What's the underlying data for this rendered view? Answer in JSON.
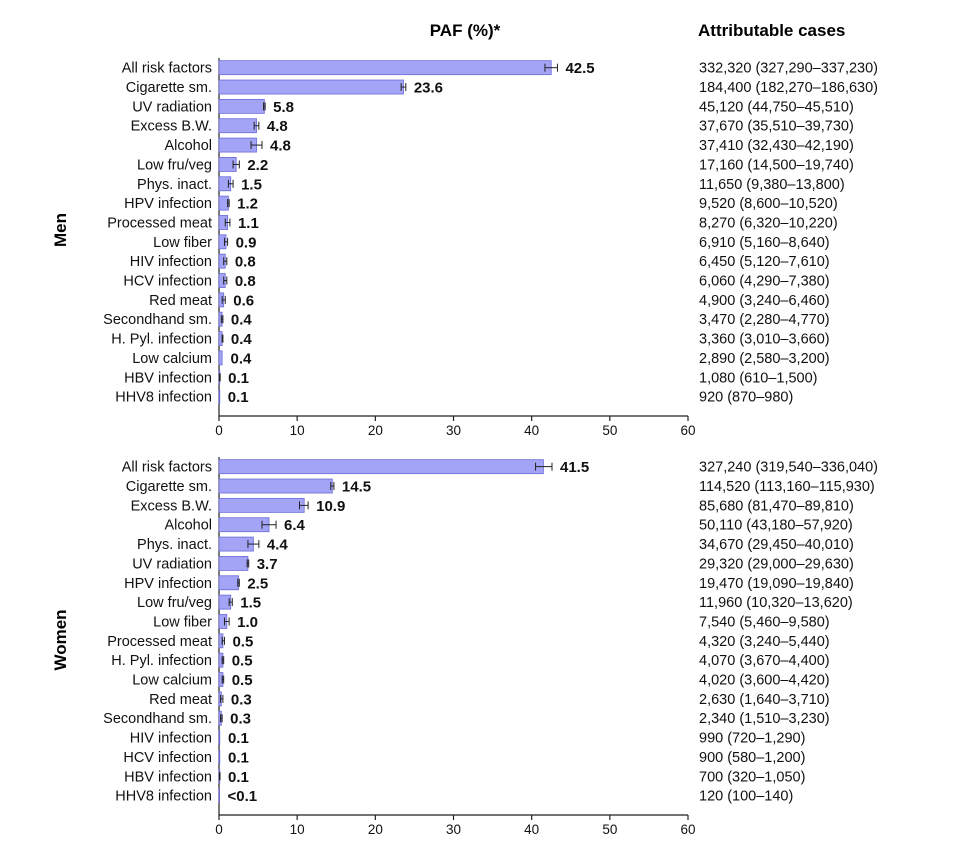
{
  "header": {
    "paf_title": "PAF (%)*",
    "cases_title": "Attributable cases"
  },
  "colors": {
    "bar_fill": "#a4a4f6",
    "bar_stroke": "#6b6bd8",
    "text": "#111111"
  },
  "chart_data": [
    {
      "type": "bar",
      "orientation": "horizontal",
      "group": "Men",
      "title": "PAF (%)*",
      "xlim": [
        0,
        60
      ],
      "xticks": [
        0,
        10,
        20,
        30,
        40,
        50,
        60
      ],
      "categories": [
        "All risk factors",
        "Cigarette sm.",
        "UV radiation",
        "Excess B.W.",
        "Alcohol",
        "Low fru/veg",
        "Phys. inact.",
        "HPV infection",
        "Processed meat",
        "Low fiber",
        "HIV infection",
        "HCV infection",
        "Red meat",
        "Secondhand sm.",
        "H. Pyl. infection",
        "Low calcium",
        "HBV infection",
        "HHV8 infection"
      ],
      "values": [
        42.5,
        23.6,
        5.8,
        4.8,
        4.8,
        2.2,
        1.5,
        1.2,
        1.1,
        0.9,
        0.8,
        0.8,
        0.6,
        0.4,
        0.4,
        0.4,
        0.1,
        0.1
      ],
      "value_labels": [
        "42.5",
        "23.6",
        "5.8",
        "4.8",
        "4.8",
        "2.2",
        "1.5",
        "1.2",
        "1.1",
        "0.9",
        "0.8",
        "0.8",
        "0.6",
        "0.4",
        "0.4",
        "0.4",
        "0.1",
        "0.1"
      ],
      "error_low": [
        41.7,
        23.3,
        5.7,
        4.5,
        4.1,
        1.8,
        1.2,
        1.1,
        0.8,
        0.7,
        0.6,
        0.6,
        0.4,
        0.3,
        0.4,
        0.4,
        0.05,
        0.1
      ],
      "error_high": [
        43.3,
        23.9,
        5.9,
        5.1,
        5.5,
        2.6,
        1.8,
        1.3,
        1.4,
        1.1,
        1.0,
        1.0,
        0.8,
        0.5,
        0.5,
        0.45,
        0.15,
        0.1
      ],
      "attributable_cases": [
        "332,320 (327,290–337,230)",
        "184,400 (182,270–186,630)",
        "45,120 (44,750–45,510)",
        "37,670 (35,510–39,730)",
        "37,410 (32,430–42,190)",
        "17,160 (14,500–19,740)",
        "11,650 (9,380–13,800)",
        "9,520 (8,600–10,520)",
        "8,270 (6,320–10,220)",
        "6,910 (5,160–8,640)",
        "6,450 (5,120–7,610)",
        "6,060 (4,290–7,380)",
        "4,900 (3,240–6,460)",
        "3,470 (2,280–4,770)",
        "3,360 (3,010–3,660)",
        "2,890 (2,580–3,200)",
        "1,080 (610–1,500)",
        "920 (870–980)"
      ]
    },
    {
      "type": "bar",
      "orientation": "horizontal",
      "group": "Women",
      "xlim": [
        0,
        60
      ],
      "xticks": [
        0,
        10,
        20,
        30,
        40,
        50,
        60
      ],
      "categories": [
        "All risk factors",
        "Cigarette sm.",
        "Excess B.W.",
        "Alcohol",
        "Phys. inact.",
        "UV radiation",
        "HPV infection",
        "Low fru/veg",
        "Low fiber",
        "Processed meat",
        "H. Pyl. infection",
        "Low calcium",
        "Red meat",
        "Secondhand sm.",
        "HIV infection",
        "HCV infection",
        "HBV infection",
        "HHV8 infection"
      ],
      "values": [
        41.5,
        14.5,
        10.9,
        6.4,
        4.4,
        3.7,
        2.5,
        1.5,
        1.0,
        0.5,
        0.5,
        0.5,
        0.3,
        0.3,
        0.1,
        0.1,
        0.1,
        0.05
      ],
      "value_labels": [
        "41.5",
        "14.5",
        "10.9",
        "6.4",
        "4.4",
        "3.7",
        "2.5",
        "1.5",
        "1.0",
        "0.5",
        "0.5",
        "0.5",
        "0.3",
        "0.3",
        "0.1",
        "0.1",
        "0.1",
        "<0.1"
      ],
      "error_low": [
        40.5,
        14.3,
        10.3,
        5.5,
        3.7,
        3.6,
        2.4,
        1.3,
        0.7,
        0.4,
        0.4,
        0.4,
        0.2,
        0.2,
        0.08,
        0.07,
        0.05,
        0.04
      ],
      "error_high": [
        42.6,
        14.7,
        11.4,
        7.3,
        5.1,
        3.8,
        2.6,
        1.7,
        1.3,
        0.7,
        0.6,
        0.6,
        0.5,
        0.4,
        0.12,
        0.13,
        0.13,
        0.06
      ],
      "attributable_cases": [
        "327,240 (319,540–336,040)",
        "114,520 (113,160–115,930)",
        "85,680 (81,470–89,810)",
        "50,110 (43,180–57,920)",
        "34,670 (29,450–40,010)",
        "29,320 (29,000–29,630)",
        "19,470 (19,090–19,840)",
        "11,960 (10,320–13,620)",
        "7,540 (5,460–9,580)",
        "4,320 (3,240–5,440)",
        "4,070 (3,670–4,400)",
        "4,020 (3,600–4,420)",
        "2,630 (1,640–3,710)",
        "2,340 (1,510–3,230)",
        "990 (720–1,290)",
        "900 (580–1,200)",
        "700 (320–1,050)",
        "120 (100–140)"
      ]
    }
  ]
}
